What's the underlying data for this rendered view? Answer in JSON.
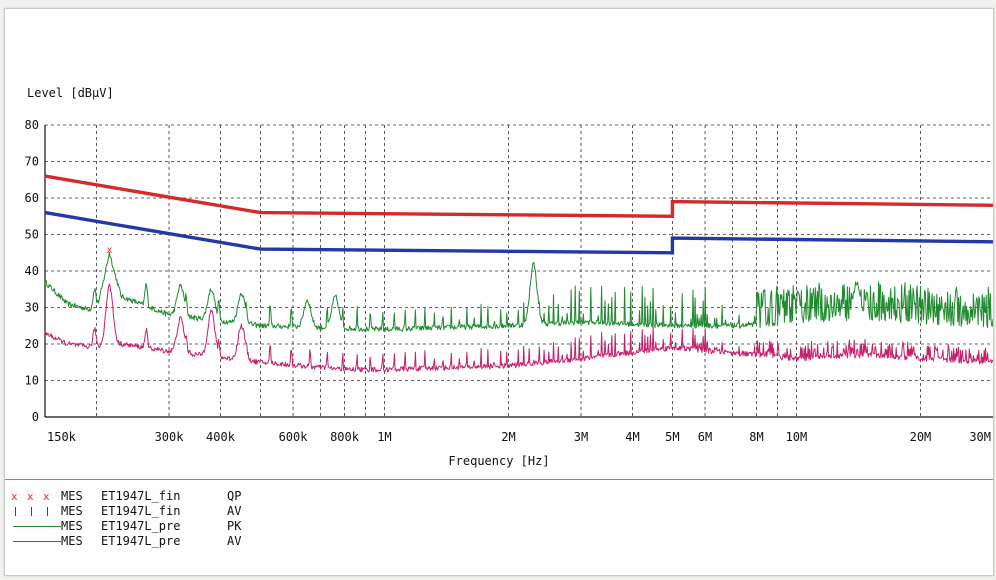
{
  "chart_data": {
    "type": "line",
    "ylabel": "Level [dBµV]",
    "xlabel": "Frequency [Hz]",
    "x_scale": "log",
    "xlim": [
      150000,
      30000000
    ],
    "ylim": [
      0,
      80
    ],
    "grid": true,
    "y_ticks": [
      0,
      10,
      20,
      30,
      40,
      50,
      60,
      70,
      80
    ],
    "x_ticks": [
      {
        "value": 150000,
        "label": "150k"
      },
      {
        "value": 300000,
        "label": "300k"
      },
      {
        "value": 400000,
        "label": "400k"
      },
      {
        "value": 600000,
        "label": "600k"
      },
      {
        "value": 800000,
        "label": "800k"
      },
      {
        "value": 1000000,
        "label": "1M"
      },
      {
        "value": 2000000,
        "label": "2M"
      },
      {
        "value": 3000000,
        "label": "3M"
      },
      {
        "value": 4000000,
        "label": "4M"
      },
      {
        "value": 5000000,
        "label": "5M"
      },
      {
        "value": 6000000,
        "label": "6M"
      },
      {
        "value": 8000000,
        "label": "8M"
      },
      {
        "value": 10000000,
        "label": "10M"
      },
      {
        "value": 20000000,
        "label": "20M"
      },
      {
        "value": 30000000,
        "label": "30M"
      }
    ],
    "minor_grid_x": [
      200000,
      500000,
      700000,
      900000,
      7000000,
      9000000
    ],
    "limit_lines": [
      {
        "color": "#d42a2a",
        "points": [
          [
            150000,
            66
          ],
          [
            500000,
            56
          ],
          [
            5000000,
            55
          ],
          [
            5000000,
            59
          ],
          [
            30000000,
            58
          ]
        ]
      },
      {
        "color": "#2438a8",
        "points": [
          [
            150000,
            56
          ],
          [
            500000,
            46
          ],
          [
            5000000,
            45
          ],
          [
            5000000,
            49
          ],
          [
            30000000,
            48
          ]
        ]
      }
    ],
    "series": [
      {
        "key": "pk",
        "color": "#1f8a2e",
        "spectrum": "pk",
        "envelope": [
          [
            150000,
            37
          ],
          [
            170000,
            31
          ],
          [
            200000,
            29
          ],
          [
            215000,
            44
          ],
          [
            230000,
            33
          ],
          [
            300000,
            28
          ],
          [
            500000,
            25
          ],
          [
            1000000,
            24
          ],
          [
            2000000,
            25
          ],
          [
            3000000,
            26
          ],
          [
            5000000,
            25
          ],
          [
            8000000,
            25
          ],
          [
            10000000,
            26
          ],
          [
            15000000,
            27
          ],
          [
            20000000,
            26
          ],
          [
            30000000,
            25
          ]
        ],
        "peaks": [
          {
            "x": 215000,
            "y": 45
          },
          {
            "x": 320000,
            "y": 36
          },
          {
            "x": 380000,
            "y": 35
          },
          {
            "x": 450000,
            "y": 34
          },
          {
            "x": 650000,
            "y": 32
          },
          {
            "x": 760000,
            "y": 33
          },
          {
            "x": 2300000,
            "y": 42
          },
          {
            "x": 14000000,
            "y": 37
          }
        ]
      },
      {
        "key": "av",
        "color": "#c4206e",
        "spectrum": "av",
        "envelope": [
          [
            150000,
            23
          ],
          [
            170000,
            20
          ],
          [
            200000,
            19
          ],
          [
            230000,
            20
          ],
          [
            300000,
            18
          ],
          [
            500000,
            15
          ],
          [
            800000,
            13
          ],
          [
            1000000,
            13
          ],
          [
            2000000,
            14
          ],
          [
            3000000,
            16
          ],
          [
            5000000,
            19
          ],
          [
            8000000,
            17
          ],
          [
            10000000,
            16
          ],
          [
            15000000,
            17
          ],
          [
            20000000,
            16
          ],
          [
            30000000,
            15
          ]
        ],
        "peaks": [
          {
            "x": 215000,
            "y": 36
          },
          {
            "x": 320000,
            "y": 27
          },
          {
            "x": 380000,
            "y": 29
          },
          {
            "x": 450000,
            "y": 25
          }
        ]
      }
    ],
    "markers": [
      {
        "x": 215000,
        "y": 46,
        "symbol": "x",
        "color": "#d33"
      }
    ]
  },
  "legend": [
    {
      "symbol": "x",
      "color": "#d33",
      "prefix": "MES",
      "name": "ET1947L_fin",
      "detector": "QP"
    },
    {
      "symbol": "tick",
      "color": "#2a3fb4",
      "prefix": "MES",
      "name": "ET1947L_fin",
      "detector": "AV"
    },
    {
      "symbol": "line",
      "color": "#1f8a2e",
      "prefix": "MES",
      "name": "ET1947L_pre",
      "detector": "PK"
    },
    {
      "symbol": "line",
      "color": "#c4206e",
      "prefix": "MES",
      "name": "ET1947L_pre",
      "detector": "AV"
    }
  ]
}
